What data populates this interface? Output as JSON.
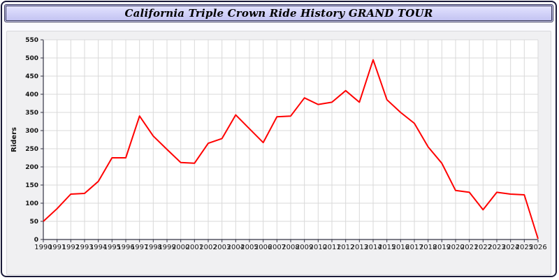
{
  "chart_data": {
    "type": "line",
    "title": "California Triple Crown Ride History GRAND TOUR",
    "ylabel": "Riders",
    "xlabel": "",
    "ylim": [
      0,
      550
    ],
    "ytick": 50,
    "grid": true,
    "legend": "none",
    "x": [
      1990,
      1991,
      1992,
      1993,
      1994,
      1995,
      1996,
      1997,
      1998,
      1999,
      2000,
      2001,
      2002,
      2003,
      2004,
      2005,
      2006,
      2007,
      2008,
      2009,
      2010,
      2011,
      2012,
      2013,
      2014,
      2015,
      2016,
      2017,
      2018,
      2019,
      2020,
      2021,
      2022,
      2023,
      2024,
      2025,
      2026
    ],
    "series": [
      {
        "name": "Riders",
        "values": [
          50,
          85,
          125,
          127,
          160,
          225,
          225,
          340,
          285,
          248,
          212,
          210,
          265,
          278,
          343,
          305,
          267,
          338,
          340,
          390,
          372,
          378,
          410,
          378,
          495,
          385,
          350,
          320,
          255,
          210,
          135,
          130,
          82,
          130,
          125,
          123,
          2
        ]
      }
    ],
    "colors": {
      "series": "#ff0000",
      "grid": "#d9d9d9",
      "axis": "#333344",
      "plot_bg": "#ffffff",
      "panel_bg": "#f0f0f2",
      "title_bar_bg": "#ccccf6",
      "label_text": "#111111"
    }
  }
}
